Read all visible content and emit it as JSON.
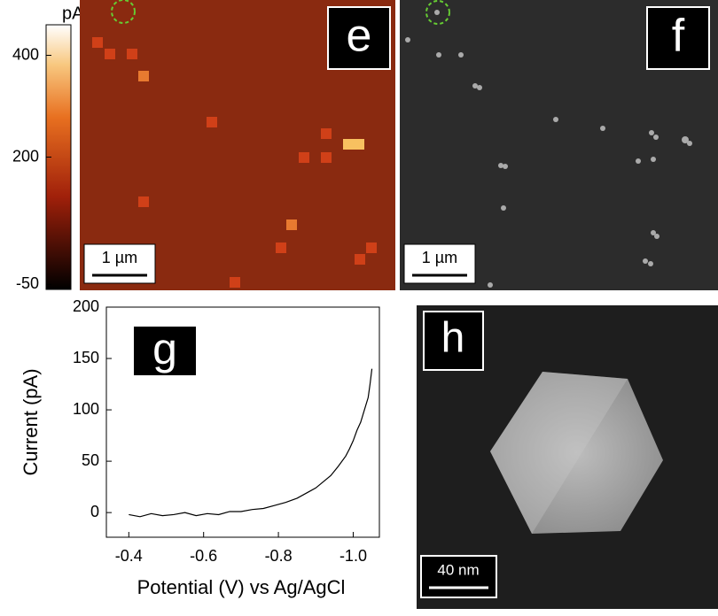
{
  "colorbar": {
    "label": "pA",
    "lim": [
      -60,
      460
    ],
    "ticks": [
      400,
      200,
      -50
    ]
  },
  "panels": {
    "e": {
      "label": "e",
      "scalebar": "1 µm"
    },
    "f": {
      "label": "f",
      "scalebar": "1 µm"
    },
    "g": {
      "label": "g"
    },
    "h": {
      "label": "h",
      "scalebar": "40 nm"
    }
  },
  "chart_data": [
    {
      "type": "line",
      "xlabel": "Potential (V) vs Ag/AgCl",
      "ylabel": "Current (pA)",
      "xlim": [
        -0.34,
        -1.07
      ],
      "ylim": [
        -24,
        200
      ],
      "xticks": [
        -0.4,
        -0.6,
        -0.8,
        {
          "value": -1,
          "label": "-1.0"
        }
      ],
      "yticks": [
        0,
        50,
        100,
        150,
        200
      ],
      "series": [
        {
          "color": "#000000",
          "x": [
            -0.4,
            -0.43,
            -0.46,
            -0.49,
            -0.52,
            -0.55,
            -0.58,
            -0.61,
            -0.64,
            -0.67,
            -0.7,
            -0.73,
            -0.76,
            -0.79,
            -0.82,
            -0.85,
            -0.88,
            -0.9,
            -0.92,
            -0.94,
            -0.96,
            -0.98,
            -0.99,
            -1.0,
            -1.01,
            -1.02,
            -1.03,
            -1.04,
            -1.045,
            -1.05
          ],
          "values": [
            -2,
            -4,
            -1,
            -3,
            -2,
            0,
            -3,
            -1,
            -2,
            1,
            1,
            3,
            4,
            7,
            10,
            14,
            20,
            24,
            30,
            36,
            45,
            55,
            62,
            70,
            80,
            88,
            100,
            112,
            125,
            140
          ]
        }
      ]
    }
  ]
}
